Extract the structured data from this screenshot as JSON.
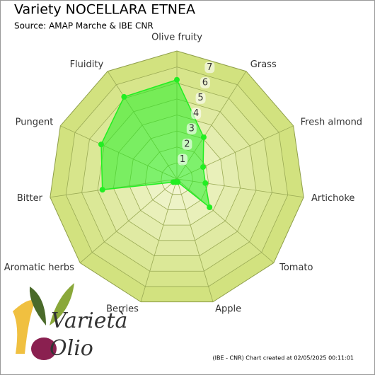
{
  "chart_data": {
    "type": "radar",
    "title": "Variety NOCELLARA ETNEA",
    "subtitle": "Source: AMAP Marche & IBE CNR",
    "categories": [
      "Olive fruity",
      "Grass",
      "Fresh almond",
      "Artichoke",
      "Tomato",
      "Apple",
      "Berries",
      "Aromatic herbs",
      "Bitter",
      "Pungent",
      "Fluidity"
    ],
    "series": [
      {
        "name": "NOCELLARA ETNEA",
        "color": "#22ee22",
        "values": [
          6.2,
          3.1,
          1.8,
          1.8,
          2.7,
          0.2,
          0.2,
          0.3,
          4.7,
          5.2,
          6.1
        ]
      }
    ],
    "ylim": [
      0,
      8
    ],
    "yticks": [
      1,
      2,
      3,
      4,
      5,
      6,
      7
    ],
    "grid": true,
    "footer": "(IBE - CNR) Chart created at 02/05/2025 00:11:01"
  },
  "logo": {
    "line1": "Varietà",
    "line2": "Olio"
  }
}
